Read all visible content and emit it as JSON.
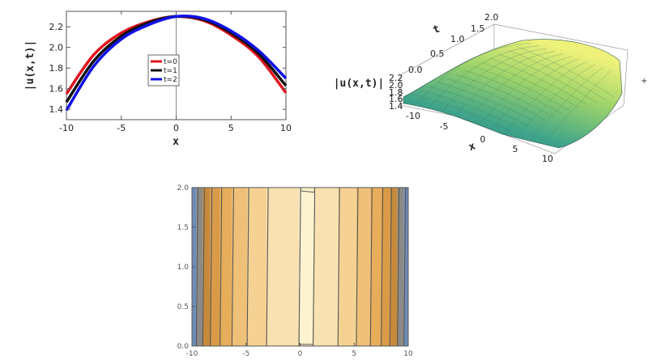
{
  "chart_data": [
    {
      "type": "line",
      "xlabel": "x",
      "ylabel": "|u(x,t)|",
      "xlim": [
        -10,
        10
      ],
      "ylim": [
        1.3,
        2.35
      ],
      "xticks": [
        "-10",
        "-5",
        "0",
        "5",
        "10"
      ],
      "yticks": [
        "1.4",
        "1.6",
        "1.8",
        "2.0",
        "2.2"
      ],
      "legend_position": "center",
      "series": [
        {
          "name": "t=0",
          "color": "#e0141e",
          "x": [
            -10,
            -7.5,
            -5,
            -2.5,
            0,
            2.5,
            5,
            7.5,
            10
          ],
          "values": [
            1.55,
            1.93,
            2.14,
            2.25,
            2.3,
            2.26,
            2.12,
            1.91,
            1.56
          ]
        },
        {
          "name": "t=1",
          "color": "#111111",
          "x": [
            -10,
            -7.5,
            -5,
            -2.5,
            0,
            2.5,
            5,
            7.5,
            10
          ],
          "values": [
            1.47,
            1.87,
            2.11,
            2.24,
            2.3,
            2.27,
            2.14,
            1.94,
            1.63
          ]
        },
        {
          "name": "t=2",
          "color": "#1010e6",
          "x": [
            -10,
            -7.5,
            -5,
            -2.5,
            0,
            2.5,
            5,
            7.5,
            10
          ],
          "values": [
            1.39,
            1.82,
            2.08,
            2.22,
            2.3,
            2.28,
            2.16,
            1.97,
            1.7
          ]
        }
      ]
    },
    {
      "type": "surface",
      "zlabel": "|u(x,t)|",
      "xlabel": "x",
      "ylabel": "t",
      "xticks": [
        "-10",
        "-5",
        "0",
        "5",
        "10"
      ],
      "tticks": [
        "0.0",
        "0.5",
        "1.0",
        "1.5",
        "2.0"
      ],
      "zticks": [
        "2.2",
        "2.0",
        "1.8",
        "1.6",
        "1.4"
      ],
      "colormap": [
        "#2b6e8a",
        "#3fa58a",
        "#9fd46a",
        "#eef27a"
      ]
    },
    {
      "type": "contour",
      "xlim": [
        -10,
        10
      ],
      "ylim": [
        0,
        2
      ],
      "xticks": [
        "-10",
        "-5",
        "0",
        "5",
        "10"
      ],
      "yticks": [
        "0.0",
        "0.5",
        "1.0",
        "1.5",
        "2.0"
      ],
      "band_edges_x": [
        -10,
        -9.6,
        -9.0,
        -8.3,
        -7.4,
        -6.3,
        -4.9,
        -3.1,
        -0.1,
        1.2,
        3.5,
        5.2,
        6.5,
        7.5,
        8.3,
        9.0,
        9.6,
        10
      ],
      "band_colors": [
        "#6f8cb8",
        "#8c8a86",
        "#c78a3c",
        "#d99b48",
        "#e6ad5a",
        "#efc078",
        "#f5d294",
        "#f9e2b1",
        "#fdf0c9",
        "#f9e2b1",
        "#f5d294",
        "#efc078",
        "#e6ad5a",
        "#d99b48",
        "#c78a3c",
        "#8c8a86",
        "#6f8cb8"
      ]
    }
  ]
}
